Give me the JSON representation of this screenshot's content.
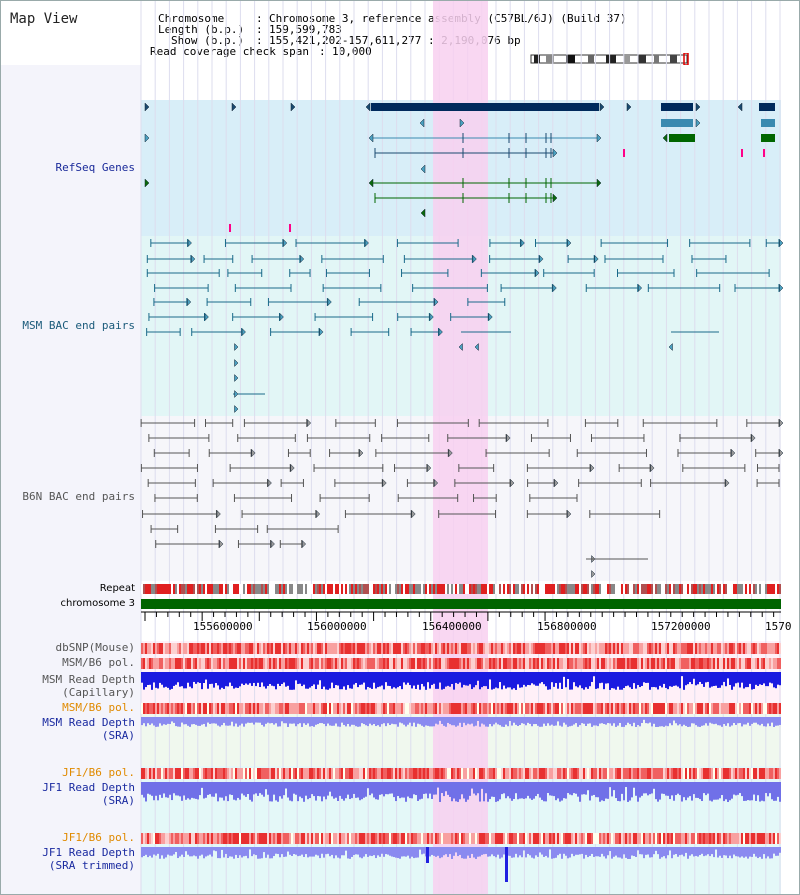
{
  "page": {
    "title": "Map View"
  },
  "header": {
    "chromosome_key": "Chromosome",
    "chromosome_val": "Chromosome 3, reference assembly (C57BL/6J) (Build 37)",
    "length_key": "Length (b.p.)",
    "length_val": "159,599,783",
    "show_key": "Show (b.p.)",
    "show_val": "155,421,202-157,611,277 : 2,190,076 bp",
    "coverage_key": "Read coverage check span",
    "coverage_val": "10,000"
  },
  "tracks": {
    "refseq": "RefSeq Genes",
    "msm_bac": "MSM BAC end pairs",
    "b6n_bac": "B6N BAC end pairs",
    "repeat": "Repeat",
    "chromosome": "chromosome 3",
    "dbsnp": "dbSNP(Mouse)",
    "msm_b6_pol_1": "MSM/B6 pol.",
    "msm_read_depth_cap_1": "MSM Read Depth",
    "msm_read_depth_cap_2": "(Capillary)",
    "msm_b6_pol_2": "MSM/B6 pol.",
    "msm_read_depth_sra_1": "MSM Read Depth",
    "msm_read_depth_sra_2": "(SRA)",
    "jf1_b6_pol_1": "JF1/B6 pol.",
    "jf1_read_depth_sra_1": "JF1 Read Depth",
    "jf1_read_depth_sra_2": "(SRA)",
    "jf1_b6_pol_2": "JF1/B6 pol.",
    "jf1_read_depth_trim_1": "JF1 Read Depth",
    "jf1_read_depth_trim_2": "(SRA trimmed)"
  },
  "axis": {
    "ticks": [
      "155600000",
      "156000000",
      "156400000",
      "156800000",
      "157200000",
      "1570"
    ]
  },
  "colors": {
    "refseq_bg": "#d8eef8",
    "bac_bg": "#e2f6f6",
    "b6n_bg": "#f6f6fa",
    "highlight": "#f8d0f0",
    "chromosome": "#006400",
    "gene_navy": "#002a5c",
    "gene_green": "#006600",
    "msm_line": "#1a6a8a",
    "b6n_line": "#555555"
  }
}
